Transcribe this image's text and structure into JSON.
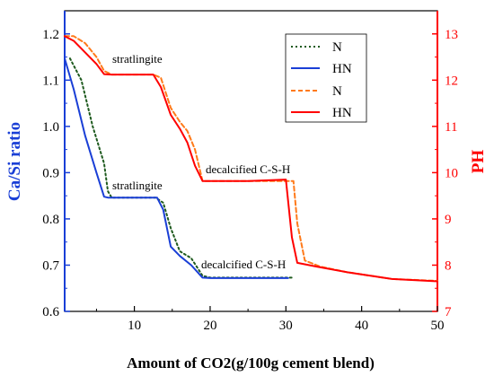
{
  "chart_data": {
    "type": "line",
    "xlabel": "Amount of CO2(g/100g cement blend)",
    "ylabel_left": "Ca/Si ratio",
    "ylabel_right": "PH",
    "xlim": [
      0.8,
      50
    ],
    "ylim_left": [
      0.6,
      1.25
    ],
    "ylim_right": [
      7,
      13.5
    ],
    "x_ticks": [
      "10",
      "20",
      "30",
      "40",
      "50"
    ],
    "y_left_ticks": [
      "0.6",
      "0.7",
      "0.8",
      "0.9",
      "1.0",
      "1.1",
      "1.2"
    ],
    "y_right_ticks": [
      "7",
      "8",
      "9",
      "10",
      "11",
      "12",
      "13"
    ],
    "colors": {
      "left_axis": "#1a3fd6",
      "right_axis": "#ff0000"
    },
    "legend": {
      "placement": "top-right",
      "entries": [
        "N",
        "HN",
        "N",
        "HN"
      ]
    },
    "annotations": [
      "stratlingite",
      "decalcified C-S-H",
      "stratlingite",
      "decalcified C-S-H"
    ],
    "series": [
      {
        "name": "N",
        "axis": "left",
        "color": "#1e5a1e",
        "style": "dotted",
        "x": [
          1.5,
          3,
          4.5,
          6,
          6.5,
          7,
          12.8,
          13.8,
          14.8,
          16,
          17.5,
          19,
          20,
          25,
          31
        ],
        "y": [
          1.147,
          1.1,
          1.0,
          0.92,
          0.86,
          0.846,
          0.846,
          0.835,
          0.78,
          0.73,
          0.715,
          0.677,
          0.673,
          0.673,
          0.673
        ]
      },
      {
        "name": "HN",
        "axis": "left",
        "color": "#1a3fd6",
        "style": "solid",
        "x": [
          0.8,
          2,
          3.5,
          5,
          6,
          6.5,
          13,
          13.8,
          14.8,
          16,
          17.5,
          19,
          20,
          25,
          30.3
        ],
        "y": [
          1.147,
          1.08,
          0.98,
          0.9,
          0.848,
          0.846,
          0.846,
          0.82,
          0.74,
          0.72,
          0.7,
          0.673,
          0.672,
          0.672,
          0.672
        ]
      },
      {
        "name": "N",
        "axis": "right",
        "color": "#ff7a1a",
        "style": "dashed",
        "x": [
          0.8,
          2,
          3.5,
          5,
          6,
          7,
          12.5,
          13.5,
          14.8,
          16,
          17,
          18,
          19,
          25,
          31,
          31.5,
          32.5,
          34.5,
          38,
          44,
          50
        ],
        "y": [
          12.95,
          12.95,
          12.8,
          12.5,
          12.2,
          12.12,
          12.12,
          12.05,
          11.4,
          11.1,
          10.9,
          10.5,
          9.82,
          9.82,
          9.82,
          8.9,
          8.1,
          7.97,
          7.85,
          7.7,
          7.66
        ]
      },
      {
        "name": "HN",
        "axis": "right",
        "color": "#ff0000",
        "style": "solid",
        "x": [
          0.8,
          2,
          3.5,
          5,
          6,
          7,
          12.5,
          13.5,
          14.8,
          16,
          17,
          18,
          19,
          25,
          30,
          30.8,
          31.5,
          34,
          38,
          44,
          50
        ],
        "y": [
          12.95,
          12.85,
          12.6,
          12.35,
          12.13,
          12.12,
          12.12,
          11.85,
          11.25,
          10.95,
          10.65,
          10.15,
          9.82,
          9.82,
          9.85,
          8.6,
          8.05,
          7.97,
          7.85,
          7.7,
          7.65
        ]
      }
    ]
  }
}
